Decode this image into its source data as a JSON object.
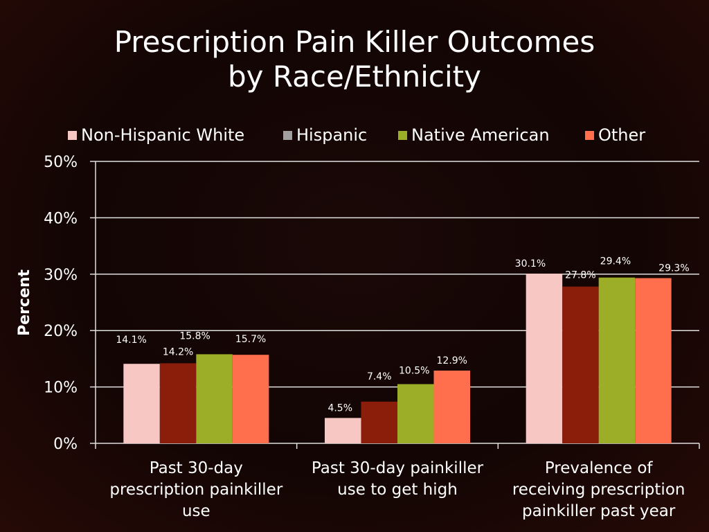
{
  "colors": {
    "background": "#130504",
    "text": "#ffffff",
    "grid": "#e0e0e0",
    "series": [
      "#f6c7c3",
      "#8b1e0a",
      "#9cad27",
      "#ff6f4d"
    ]
  },
  "chart_data": {
    "type": "bar",
    "title_lines": [
      "Prescription Pain Killer Outcomes",
      "by Race/Ethnicity"
    ],
    "xlabel": "",
    "ylabel": "Percent",
    "ylim": [
      0,
      50
    ],
    "yticks": [
      "0%",
      "10%",
      "20%",
      "30%",
      "40%",
      "50%"
    ],
    "ytick_values": [
      0,
      10,
      20,
      30,
      40,
      50
    ],
    "grid": true,
    "legend_position": "top",
    "categories": [
      [
        "Past 30-day",
        "prescription painkiller",
        "use"
      ],
      [
        "Past 30-day painkiller",
        "use to get high"
      ],
      [
        "Prevalence of",
        "receiving prescription",
        "painkiller past year"
      ]
    ],
    "series": [
      {
        "name": "Non-Hispanic White",
        "values": [
          14.1,
          4.5,
          30.1
        ],
        "labels": [
          "14.1%",
          "4.5%",
          "30.1%"
        ]
      },
      {
        "name": "Hispanic",
        "values": [
          14.2,
          7.4,
          27.8
        ],
        "labels": [
          "14.2%",
          "7.4%",
          "27.8%"
        ]
      },
      {
        "name": "Native American",
        "values": [
          15.8,
          10.5,
          29.4
        ],
        "labels": [
          "15.8%",
          "10.5%",
          "29.4%"
        ]
      },
      {
        "name": "Other",
        "values": [
          15.7,
          12.9,
          29.3
        ],
        "labels": [
          "15.7%",
          "12.9%",
          "29.3%"
        ]
      }
    ],
    "legend_swatch_colors": [
      "#f6c7c3",
      "#a0a0a0",
      "#9cad27",
      "#ff6f4d"
    ]
  }
}
